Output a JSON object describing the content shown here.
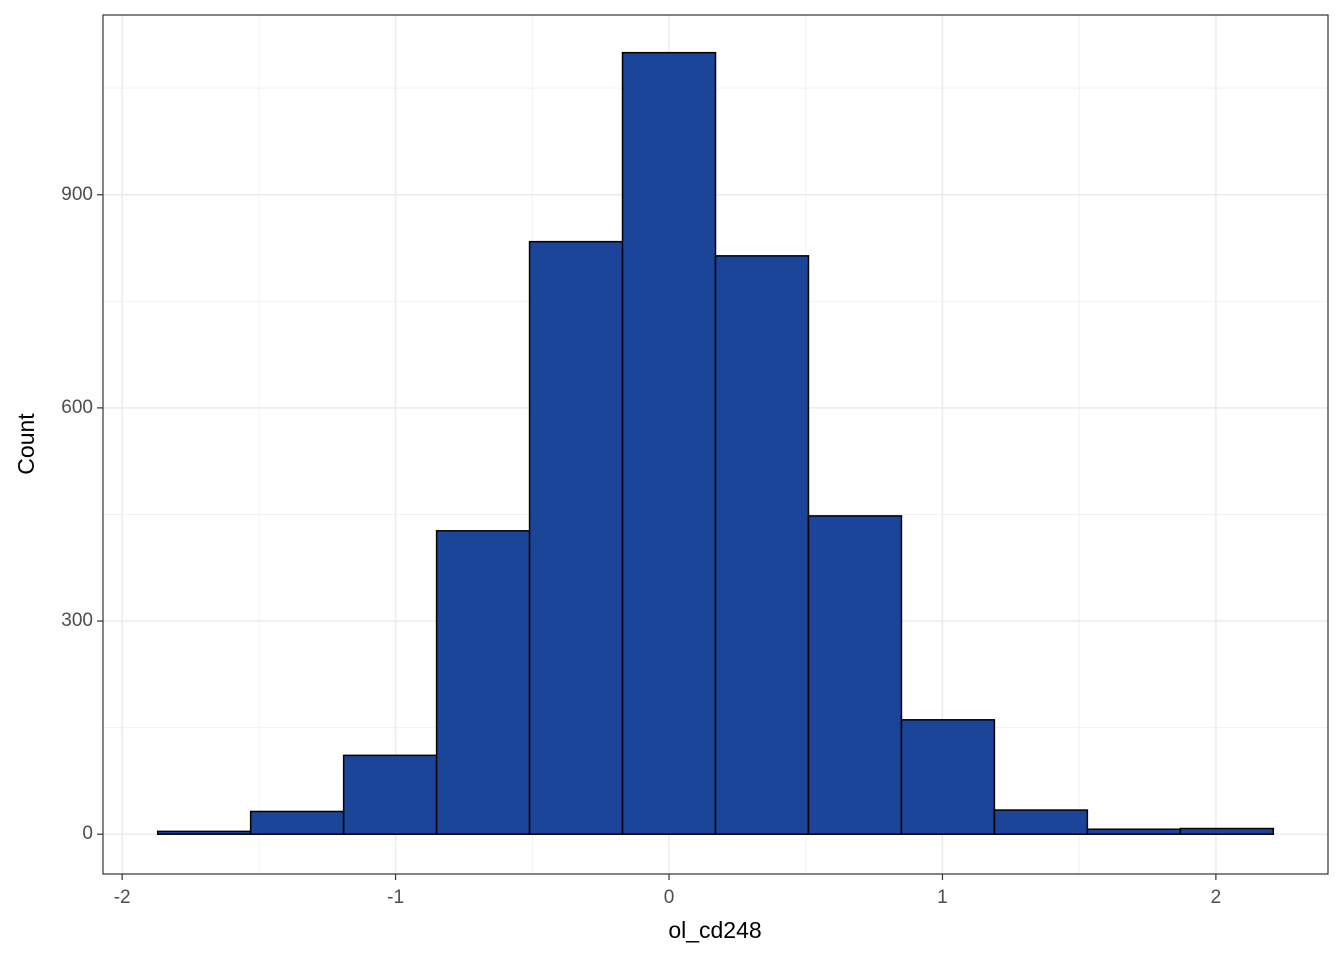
{
  "chart_data": {
    "type": "histogram",
    "x_label": "ol_cd248",
    "y_label": "Count",
    "bins": [
      -1.87,
      -1.53,
      -1.19,
      -0.85,
      -0.51,
      -0.17,
      0.17,
      0.51,
      0.85,
      1.19,
      1.53,
      1.87,
      2.21
    ],
    "values": [
      4,
      32,
      111,
      427,
      834,
      1100,
      814,
      448,
      161,
      34,
      7,
      8
    ],
    "color": "#1a4599",
    "xlim": [
      -2.07,
      2.41
    ],
    "xticks": [
      -2,
      -1,
      0,
      1,
      2
    ],
    "ylim": [
      -56,
      1153
    ],
    "yticks": [
      0,
      300,
      600,
      900
    ],
    "grid": true
  }
}
